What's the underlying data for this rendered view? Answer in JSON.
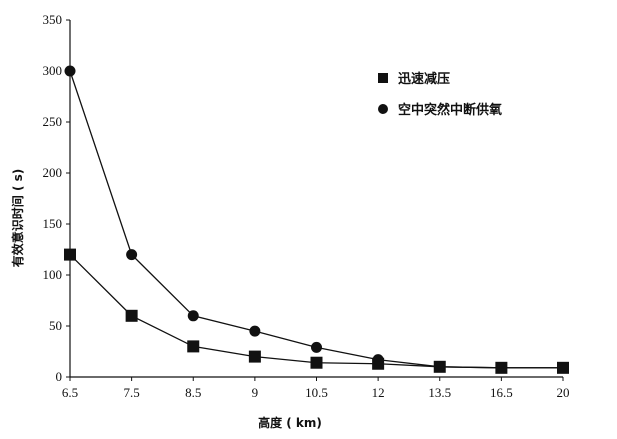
{
  "chart_data": {
    "type": "line",
    "title": "",
    "xlabel": "高度 ( km)",
    "ylabel": "有效意识时间 ( s)",
    "categories": [
      "6.5",
      "7.5",
      "8.5",
      "9",
      "10.5",
      "12",
      "13.5",
      "16.5",
      "20"
    ],
    "ylim": [
      0,
      350
    ],
    "yticks": [
      0,
      50,
      100,
      150,
      200,
      250,
      300,
      350
    ],
    "grid": false,
    "legend_position": "top-right",
    "series": [
      {
        "name": "迅速减压",
        "marker": "square",
        "color": "#111111",
        "values": [
          120,
          60,
          30,
          20,
          14,
          13,
          10,
          9,
          9
        ]
      },
      {
        "name": "空中突然中断供氧",
        "marker": "circle",
        "color": "#111111",
        "values": [
          300,
          120,
          60,
          45,
          29,
          17,
          10,
          9,
          9
        ]
      }
    ]
  }
}
